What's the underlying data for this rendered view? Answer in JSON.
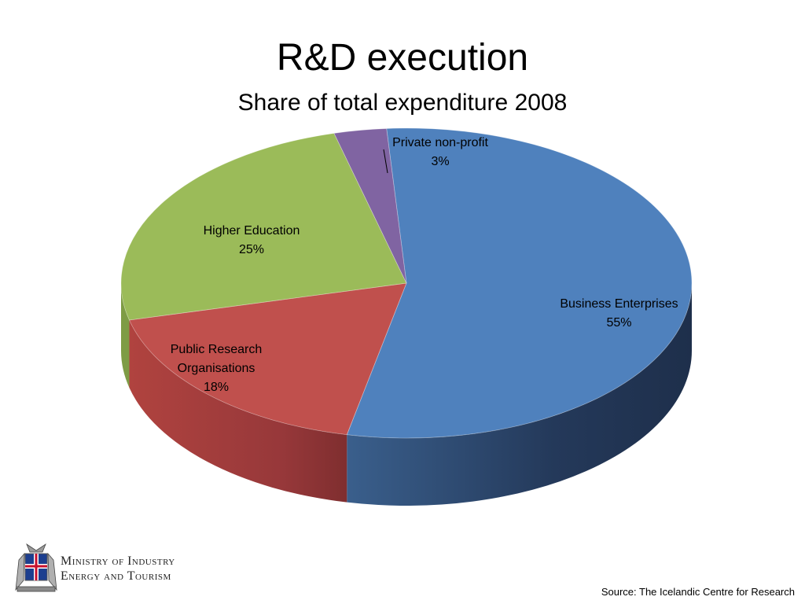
{
  "chart_data": {
    "type": "pie",
    "title": "R&D execution",
    "subtitle": "Share of total expenditure 2008",
    "slices": [
      {
        "label": "Business Enterprises",
        "value": 55,
        "value_label": "55%",
        "color": "#4F81BD"
      },
      {
        "label": "Public Research Organisations",
        "value": 18,
        "value_label": "18%",
        "color": "#C0504D"
      },
      {
        "label": "Higher Education",
        "value": 25,
        "value_label": "25%",
        "color": "#9BBB59"
      },
      {
        "label": "Private non-profit",
        "value": 3,
        "value_label": "3%",
        "color": "#8064A2"
      }
    ],
    "style": "3d"
  },
  "footer": {
    "ministry_line1": "Ministry of Industry",
    "ministry_line2": "Energy and Tourism",
    "source": "Source: The Icelandic Centre for Research"
  },
  "logo": {
    "icon": "iceland-coat-of-arms-icon"
  }
}
